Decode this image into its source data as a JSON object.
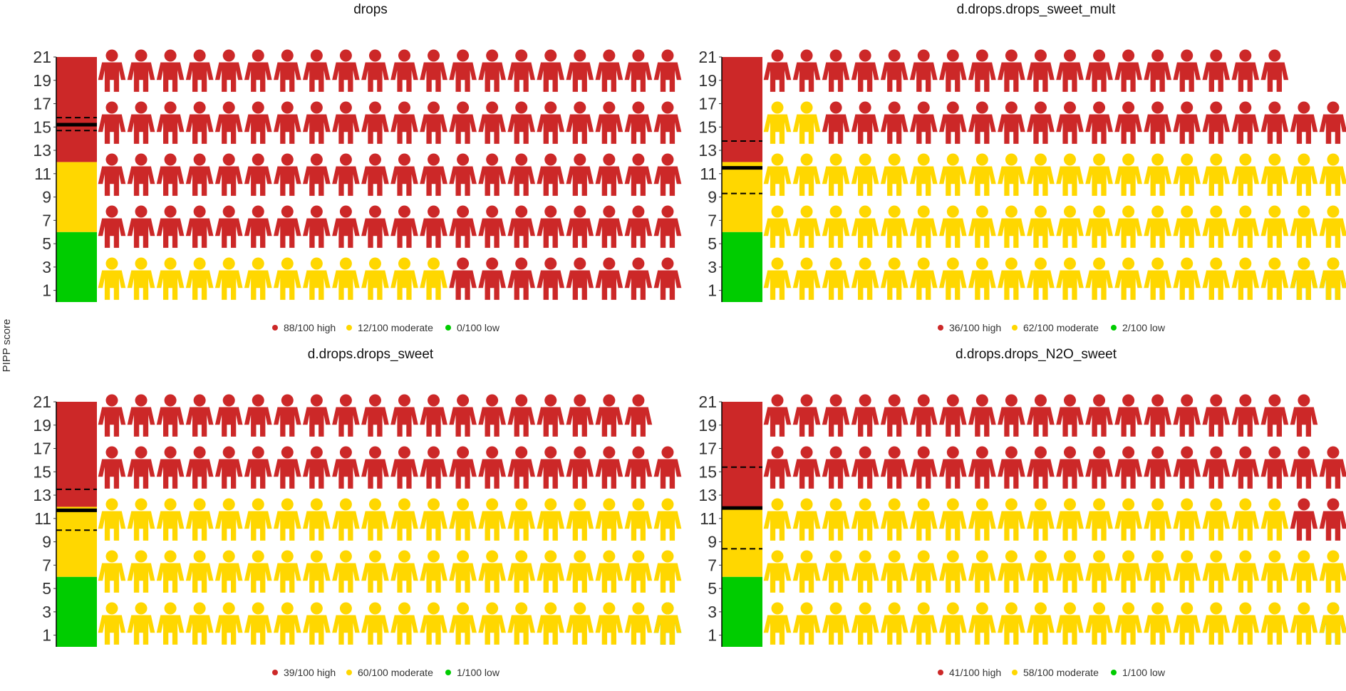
{
  "ylabel": "PIPP score",
  "colors": {
    "high": "#CC2828",
    "moderate": "#FFD700",
    "low": "#00CC00",
    "line": "#000000"
  },
  "chart_data": [
    {
      "type": "pictograph",
      "title": "drops",
      "ylim": [
        0,
        21
      ],
      "yticks": [
        "1",
        "3",
        "5",
        "7",
        "9",
        "11",
        "13",
        "15",
        "17",
        "19",
        "21"
      ],
      "bands": [
        {
          "level": "low",
          "from": 0,
          "to": 6
        },
        {
          "level": "moderate",
          "from": 6,
          "to": 12
        },
        {
          "level": "high",
          "from": 12,
          "to": 21
        }
      ],
      "mean": 15.2,
      "ci": [
        14.7,
        15.8
      ],
      "counts": {
        "high": 88,
        "moderate": 12,
        "low": 0
      },
      "legend": [
        "88/100 high",
        "12/100 moderate",
        "0/100 low"
      ]
    },
    {
      "type": "pictograph",
      "title": "d.drops.drops_sweet_mult",
      "ylim": [
        0,
        21
      ],
      "yticks": [
        "1",
        "3",
        "5",
        "7",
        "9",
        "11",
        "13",
        "15",
        "17",
        "19",
        "21"
      ],
      "bands": [
        {
          "level": "low",
          "from": 0,
          "to": 6
        },
        {
          "level": "moderate",
          "from": 6,
          "to": 12
        },
        {
          "level": "high",
          "from": 12,
          "to": 21
        }
      ],
      "mean": 11.5,
      "ci": [
        9.3,
        13.8
      ],
      "counts": {
        "high": 36,
        "moderate": 62,
        "low": 2
      },
      "legend": [
        "36/100 high",
        "62/100 moderate",
        "2/100 low"
      ]
    },
    {
      "type": "pictograph",
      "title": "d.drops.drops_sweet",
      "ylim": [
        0,
        21
      ],
      "yticks": [
        "1",
        "3",
        "5",
        "7",
        "9",
        "11",
        "13",
        "15",
        "17",
        "19",
        "21"
      ],
      "bands": [
        {
          "level": "low",
          "from": 0,
          "to": 6
        },
        {
          "level": "moderate",
          "from": 6,
          "to": 12
        },
        {
          "level": "high",
          "from": 12,
          "to": 21
        }
      ],
      "mean": 11.7,
      "ci": [
        10.0,
        13.5
      ],
      "counts": {
        "high": 39,
        "moderate": 60,
        "low": 1
      },
      "legend": [
        "39/100 high",
        "60/100 moderate",
        "1/100 low"
      ]
    },
    {
      "type": "pictograph",
      "title": "d.drops.drops_N2O_sweet",
      "ylim": [
        0,
        21
      ],
      "yticks": [
        "1",
        "3",
        "5",
        "7",
        "9",
        "11",
        "13",
        "15",
        "17",
        "19",
        "21"
      ],
      "bands": [
        {
          "level": "low",
          "from": 0,
          "to": 6
        },
        {
          "level": "moderate",
          "from": 6,
          "to": 12
        },
        {
          "level": "high",
          "from": 12,
          "to": 21
        }
      ],
      "mean": 11.9,
      "ci": [
        8.4,
        15.4
      ],
      "counts": {
        "high": 41,
        "moderate": 58,
        "low": 1
      },
      "legend": [
        "41/100 high",
        "58/100 moderate",
        "1/100 low"
      ]
    }
  ]
}
